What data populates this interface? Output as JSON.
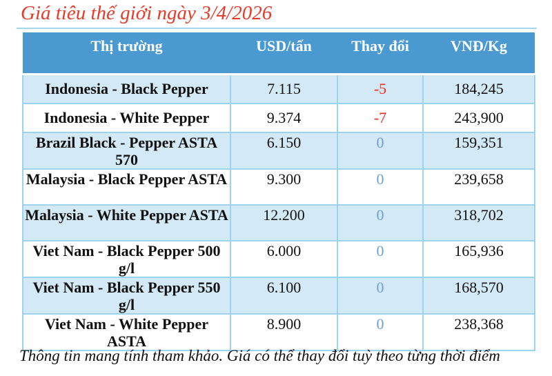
{
  "title": "Giá tiêu thế giới ngày 3/4/2026",
  "table": {
    "headers": [
      "Thị trường",
      "USD/tấn",
      "Thay đổi",
      "VNĐ/Kg"
    ],
    "rows": [
      {
        "market": "Indonesia - Black Pepper",
        "usd": "7.115",
        "change": "-5",
        "vnd": "184,245"
      },
      {
        "market": "Indonesia - White Pepper",
        "usd": "9.374",
        "change": "-7",
        "vnd": "243,900"
      },
      {
        "market": "Brazil Black - Pepper ASTA 570",
        "usd": "6.150",
        "change": "0",
        "vnd": "159,351"
      },
      {
        "market": "Malaysia - Black Pepper ASTA",
        "usd": "9.300",
        "change": "0",
        "vnd": "239,658"
      },
      {
        "market": "Malaysia - White Pepper ASTA",
        "usd": "12.200",
        "change": "0",
        "vnd": "318,702"
      },
      {
        "market": "Viet Nam - Black Pepper 500 g/l",
        "usd": "6.000",
        "change": "0",
        "vnd": "165,936"
      },
      {
        "market": "Viet Nam - Black Pepper 550 g/l",
        "usd": "6.100",
        "change": "0",
        "vnd": "168,570"
      },
      {
        "market": "Viet Nam - White Pepper ASTA",
        "usd": "8.900",
        "change": "0",
        "vnd": "238,368"
      }
    ]
  },
  "footer": "Thông tin mang tính tham khảo. Giá có thể thay đổi tuỳ theo từng thời điểm",
  "colors": {
    "title_red": "#e43b2a",
    "header_bg": "#4a9ad1",
    "header_text": "#ffffff",
    "row_alt_bg": "#d3e9f6",
    "cell_border": "#9cd3ee",
    "change_negative": "#f5281c",
    "change_zero": "#6d9fd4"
  }
}
